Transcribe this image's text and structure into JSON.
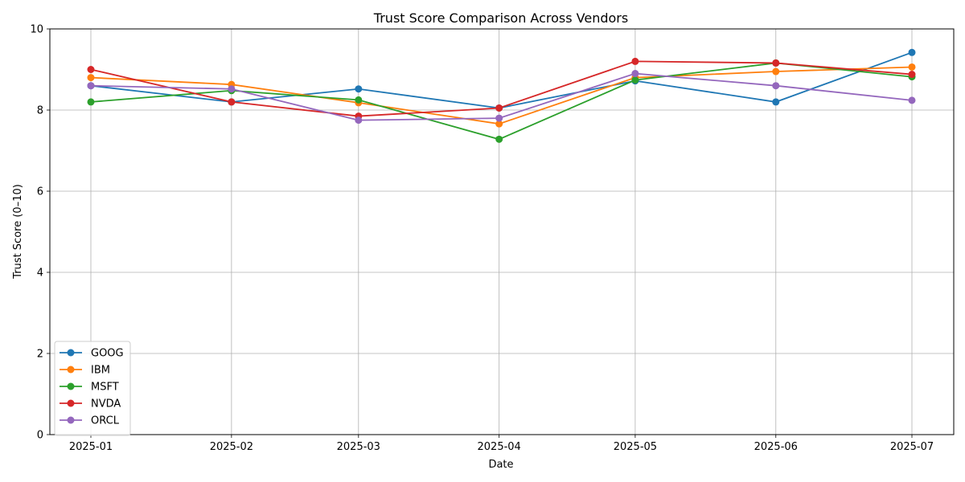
{
  "chart_data": {
    "type": "line",
    "title": "Trust Score Comparison Across Vendors",
    "xlabel": "Date",
    "ylabel": "Trust Score (0–10)",
    "x": [
      "2025-01-01",
      "2025-02-01",
      "2025-03-01",
      "2025-04-01",
      "2025-05-01",
      "2025-06-01",
      "2025-07-01"
    ],
    "x_tick_labels": [
      "2025-01",
      "2025-02",
      "2025-03",
      "2025-04",
      "2025-05",
      "2025-06",
      "2025-07"
    ],
    "ylim": [
      0,
      10
    ],
    "y_ticks": [
      "0",
      "2",
      "4",
      "6",
      "8",
      "10"
    ],
    "grid": true,
    "legend_position": "lower-left",
    "series": [
      {
        "name": "GOOG",
        "color": "#1f77b4",
        "values": [
          8.6,
          8.2,
          8.52,
          8.05,
          8.72,
          8.2,
          9.42
        ]
      },
      {
        "name": "IBM",
        "color": "#ff7f0e",
        "values": [
          8.8,
          8.63,
          8.18,
          7.66,
          8.8,
          8.95,
          9.06
        ]
      },
      {
        "name": "MSFT",
        "color": "#2ca02c",
        "values": [
          8.2,
          8.48,
          8.25,
          7.28,
          8.74,
          9.16,
          8.82
        ]
      },
      {
        "name": "NVDA",
        "color": "#d62728",
        "values": [
          9.0,
          8.2,
          7.85,
          8.05,
          9.2,
          9.16,
          8.88
        ]
      },
      {
        "name": "ORCL",
        "color": "#9467bd",
        "values": [
          8.6,
          8.52,
          7.75,
          7.8,
          8.9,
          8.6,
          8.24
        ]
      }
    ]
  }
}
